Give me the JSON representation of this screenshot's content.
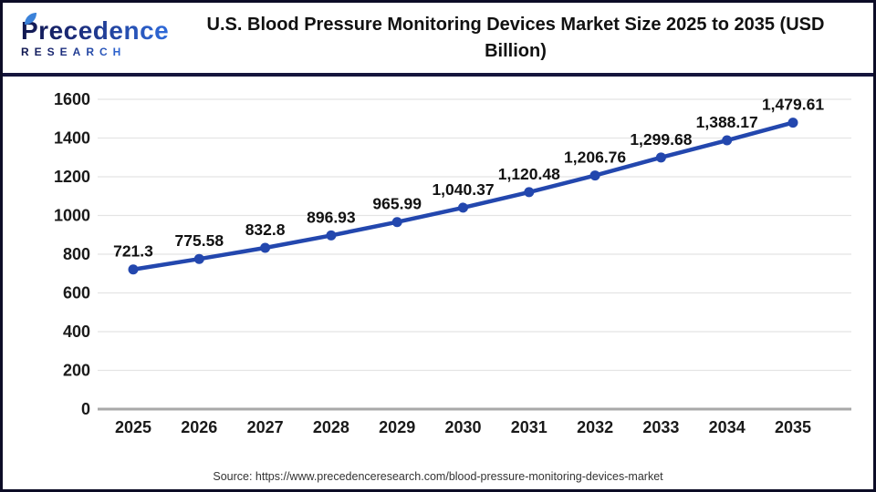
{
  "header": {
    "logo": {
      "name": "Precedence",
      "subtitle": "RESEARCH"
    },
    "title": "U.S. Blood Pressure Monitoring Devices Market Size 2025 to 2035 (USD Billion)"
  },
  "chart_data": {
    "type": "line",
    "title": "U.S. Blood Pressure Monitoring Devices Market Size 2025 to 2035 (USD Billion)",
    "categories": [
      "2025",
      "2026",
      "2027",
      "2028",
      "2029",
      "2030",
      "2031",
      "2032",
      "2033",
      "2034",
      "2035"
    ],
    "values": [
      721.3,
      775.58,
      832.8,
      896.93,
      965.99,
      1040.37,
      1120.48,
      1206.76,
      1299.68,
      1388.17,
      1479.61
    ],
    "value_labels": [
      "721.3",
      "775.58",
      "832.8",
      "896.93",
      "965.99",
      "1,040.37",
      "1,120.48",
      "1,206.76",
      "1,299.68",
      "1,388.17",
      "1,479.61"
    ],
    "xlabel": "",
    "ylabel": "",
    "ylim": [
      0,
      1600
    ],
    "ytick_step": 200,
    "ytick_labels": [
      "0",
      "200",
      "400",
      "600",
      "800",
      "1000",
      "1200",
      "1400",
      "1600"
    ],
    "grid": true,
    "legend": "none"
  },
  "footer": {
    "source": "Source: https://www.precedenceresearch.com/blood-pressure-monitoring-devices-market"
  },
  "colors": {
    "line": "#2347ae",
    "marker": "#2347ae",
    "grid": "#e4e4e4",
    "axis": "#a8a8a8",
    "frame": "#0c0c26",
    "separator": "#15153d",
    "leaf": "#3b82d9"
  }
}
